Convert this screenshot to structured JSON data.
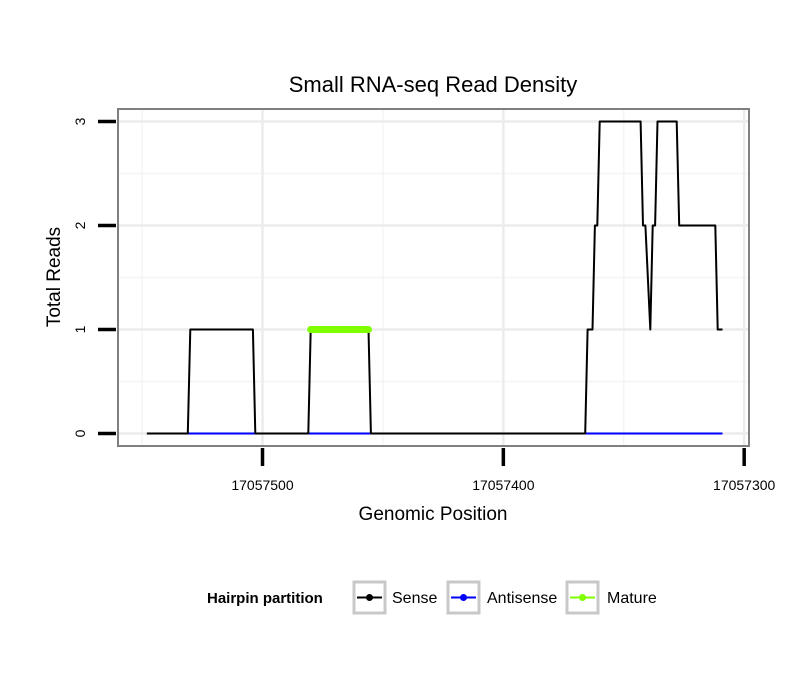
{
  "chart_data": {
    "type": "line",
    "title": "Small RNA-seq Read Density",
    "xlabel": "Genomic Position",
    "ylabel": "Total Reads",
    "x_reversed": true,
    "xlim": [
      17057560,
      17057298
    ],
    "ylim": [
      -0.12,
      3.12
    ],
    "x_ticks": [
      17057500,
      17057400,
      17057300
    ],
    "x_tick_labels": [
      "17057500",
      "17057400",
      "17057300"
    ],
    "y_ticks": [
      0,
      1,
      2,
      3
    ],
    "y_tick_labels": [
      "0",
      "1",
      "2",
      "3"
    ],
    "grid": true,
    "legend": {
      "title": "Hairpin partition",
      "position": "bottom",
      "entries": [
        "Sense",
        "Antisense",
        "Mature"
      ]
    },
    "series": [
      {
        "name": "Sense",
        "color": "#000000",
        "x": [
          17057548,
          17057531,
          17057530,
          17057504,
          17057503,
          17057482,
          17057481,
          17057480,
          17057456,
          17057455,
          17057454,
          17057366,
          17057365,
          17057363,
          17057362,
          17057361,
          17057360,
          17057358,
          17057357,
          17057356,
          17057343,
          17057342,
          17057341,
          17057339,
          17057338,
          17057337,
          17057336,
          17057335,
          17057329,
          17057328,
          17057327,
          17057313,
          17057312,
          17057311,
          17057309
        ],
        "y": [
          0,
          0,
          1,
          1,
          0,
          0,
          0,
          1,
          1,
          0,
          0,
          0,
          1,
          1,
          2,
          2,
          3,
          3,
          3,
          3,
          3,
          2,
          2,
          1,
          2,
          2,
          3,
          3,
          3,
          3,
          2,
          2,
          2,
          1,
          1
        ]
      },
      {
        "name": "Antisense",
        "color": "#0000ff",
        "x": [
          17057548,
          17057309
        ],
        "y": [
          0,
          0
        ]
      },
      {
        "name": "Mature",
        "color": "#7fff00",
        "x": [
          17057480,
          17057456
        ],
        "y": [
          1,
          1
        ]
      }
    ]
  }
}
